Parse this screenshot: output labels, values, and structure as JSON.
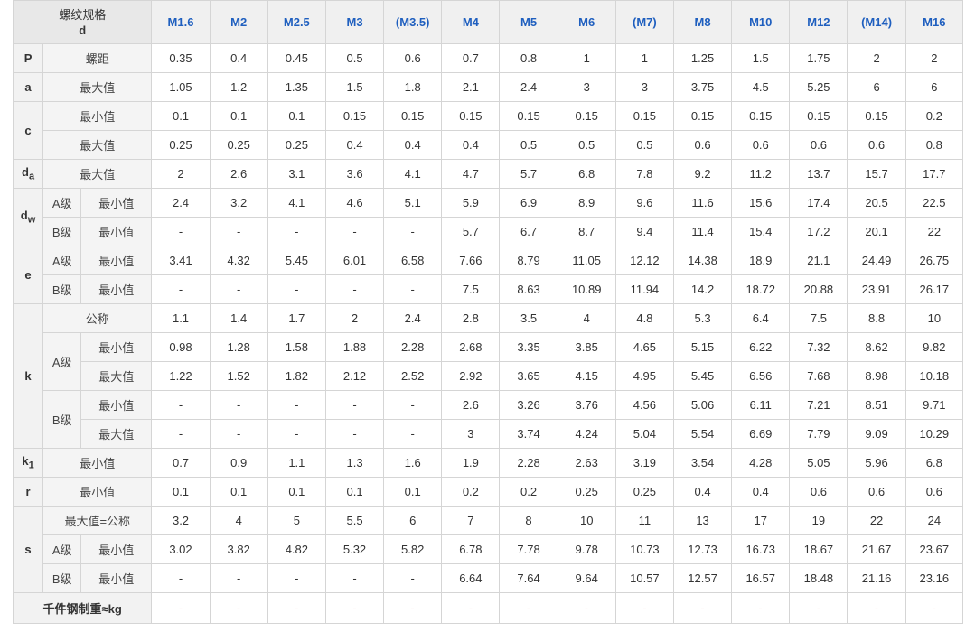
{
  "header": {
    "corner_title": "螺纹规格",
    "corner_sub": "d",
    "sizes": [
      "M1.6",
      "M2",
      "M2.5",
      "M3",
      "(M3.5)",
      "M4",
      "M5",
      "M6",
      "(M7)",
      "M8",
      "M10",
      "M12",
      "(M14)",
      "M16"
    ]
  },
  "symbols": {
    "P": "P",
    "a": "a",
    "c": "c",
    "da_main": "d",
    "da_sub": "a",
    "dw_main": "d",
    "dw_sub": "w",
    "e": "e",
    "k": "k",
    "k1_main": "k",
    "k1_sub": "1",
    "r": "r",
    "s": "s"
  },
  "labels": {
    "pitch": "螺距",
    "max": "最大值",
    "min": "最小值",
    "grade_a": "A级",
    "grade_b": "B级",
    "nominal": "公称",
    "max_eq_nominal": "最大值=公称",
    "weight": "千件钢制重≈kg"
  },
  "rows": {
    "P": [
      "0.35",
      "0.4",
      "0.45",
      "0.5",
      "0.6",
      "0.7",
      "0.8",
      "1",
      "1",
      "1.25",
      "1.5",
      "1.75",
      "2",
      "2"
    ],
    "a_max": [
      "1.05",
      "1.2",
      "1.35",
      "1.5",
      "1.8",
      "2.1",
      "2.4",
      "3",
      "3",
      "3.75",
      "4.5",
      "5.25",
      "6",
      "6"
    ],
    "c_min": [
      "0.1",
      "0.1",
      "0.1",
      "0.15",
      "0.15",
      "0.15",
      "0.15",
      "0.15",
      "0.15",
      "0.15",
      "0.15",
      "0.15",
      "0.15",
      "0.2"
    ],
    "c_max": [
      "0.25",
      "0.25",
      "0.25",
      "0.4",
      "0.4",
      "0.4",
      "0.5",
      "0.5",
      "0.5",
      "0.6",
      "0.6",
      "0.6",
      "0.6",
      "0.8"
    ],
    "da_max": [
      "2",
      "2.6",
      "3.1",
      "3.6",
      "4.1",
      "4.7",
      "5.7",
      "6.8",
      "7.8",
      "9.2",
      "11.2",
      "13.7",
      "15.7",
      "17.7"
    ],
    "dw_a_min": [
      "2.4",
      "3.2",
      "4.1",
      "4.6",
      "5.1",
      "5.9",
      "6.9",
      "8.9",
      "9.6",
      "11.6",
      "15.6",
      "17.4",
      "20.5",
      "22.5"
    ],
    "dw_b_min": [
      "-",
      "-",
      "-",
      "-",
      "-",
      "5.7",
      "6.7",
      "8.7",
      "9.4",
      "11.4",
      "15.4",
      "17.2",
      "20.1",
      "22"
    ],
    "e_a_min": [
      "3.41",
      "4.32",
      "5.45",
      "6.01",
      "6.58",
      "7.66",
      "8.79",
      "11.05",
      "12.12",
      "14.38",
      "18.9",
      "21.1",
      "24.49",
      "26.75"
    ],
    "e_b_min": [
      "-",
      "-",
      "-",
      "-",
      "-",
      "7.5",
      "8.63",
      "10.89",
      "11.94",
      "14.2",
      "18.72",
      "20.88",
      "23.91",
      "26.17"
    ],
    "k_nominal": [
      "1.1",
      "1.4",
      "1.7",
      "2",
      "2.4",
      "2.8",
      "3.5",
      "4",
      "4.8",
      "5.3",
      "6.4",
      "7.5",
      "8.8",
      "10"
    ],
    "k_a_min": [
      "0.98",
      "1.28",
      "1.58",
      "1.88",
      "2.28",
      "2.68",
      "3.35",
      "3.85",
      "4.65",
      "5.15",
      "6.22",
      "7.32",
      "8.62",
      "9.82"
    ],
    "k_a_max": [
      "1.22",
      "1.52",
      "1.82",
      "2.12",
      "2.52",
      "2.92",
      "3.65",
      "4.15",
      "4.95",
      "5.45",
      "6.56",
      "7.68",
      "8.98",
      "10.18"
    ],
    "k_b_min": [
      "-",
      "-",
      "-",
      "-",
      "-",
      "2.6",
      "3.26",
      "3.76",
      "4.56",
      "5.06",
      "6.11",
      "7.21",
      "8.51",
      "9.71"
    ],
    "k_b_max": [
      "-",
      "-",
      "-",
      "-",
      "-",
      "3",
      "3.74",
      "4.24",
      "5.04",
      "5.54",
      "6.69",
      "7.79",
      "9.09",
      "10.29"
    ],
    "k1_min": [
      "0.7",
      "0.9",
      "1.1",
      "1.3",
      "1.6",
      "1.9",
      "2.28",
      "2.63",
      "3.19",
      "3.54",
      "4.28",
      "5.05",
      "5.96",
      "6.8"
    ],
    "r_min": [
      "0.1",
      "0.1",
      "0.1",
      "0.1",
      "0.1",
      "0.2",
      "0.2",
      "0.25",
      "0.25",
      "0.4",
      "0.4",
      "0.6",
      "0.6",
      "0.6"
    ],
    "s_max": [
      "3.2",
      "4",
      "5",
      "5.5",
      "6",
      "7",
      "8",
      "10",
      "11",
      "13",
      "17",
      "19",
      "22",
      "24"
    ],
    "s_a_min": [
      "3.02",
      "3.82",
      "4.82",
      "5.32",
      "5.82",
      "6.78",
      "7.78",
      "9.78",
      "10.73",
      "12.73",
      "16.73",
      "18.67",
      "21.67",
      "23.67"
    ],
    "s_b_min": [
      "-",
      "-",
      "-",
      "-",
      "-",
      "6.64",
      "7.64",
      "9.64",
      "10.57",
      "12.57",
      "16.57",
      "18.48",
      "21.16",
      "23.16"
    ],
    "weight": [
      "-",
      "-",
      "-",
      "-",
      "-",
      "-",
      "-",
      "-",
      "-",
      "-",
      "-",
      "-",
      "-",
      "-"
    ]
  }
}
